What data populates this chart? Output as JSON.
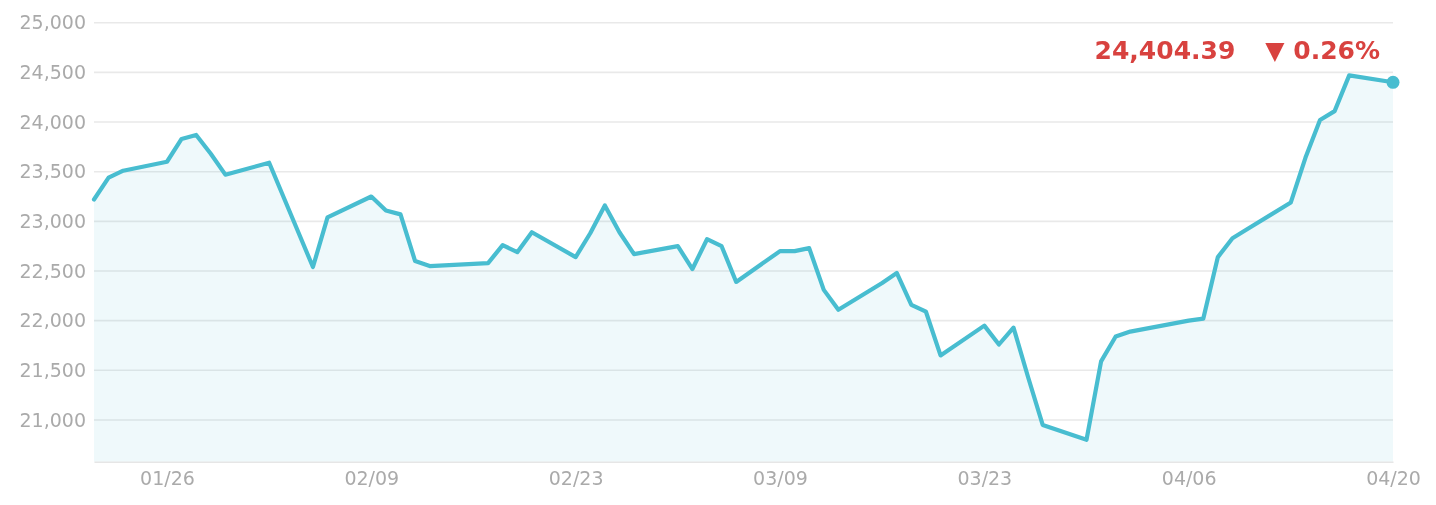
{
  "chart_data": {
    "type": "area",
    "x": [
      "--01-21",
      "--01-22",
      "--01-23",
      "--01-26",
      "--01-27",
      "--01-28",
      "--01-29",
      "--01-30",
      "--02-02",
      "--02-03",
      "--02-04",
      "--02-05",
      "--02-06",
      "--02-09",
      "--02-10",
      "--02-11",
      "--02-12",
      "--02-13",
      "--02-17",
      "--02-18",
      "--02-19",
      "--02-20",
      "--02-23",
      "--02-24",
      "--02-25",
      "--02-26",
      "--02-27",
      "--03-02",
      "--03-03",
      "--03-04",
      "--03-05",
      "--03-06",
      "--03-09",
      "--03-10",
      "--03-11",
      "--03-12",
      "--03-13",
      "--03-16",
      "--03-17",
      "--03-18",
      "--03-19",
      "--03-20",
      "--03-23",
      "--03-24",
      "--03-25",
      "--03-26",
      "--03-27",
      "--03-30",
      "--03-31",
      "--04-01",
      "--04-02",
      "--04-06",
      "--04-07",
      "--04-08",
      "--04-09",
      "--04-10",
      "--04-13",
      "--04-14",
      "--04-15",
      "--04-16",
      "--04-17",
      "--04-20"
    ],
    "series": [
      {
        "color": "#48bdd0",
        "values": [
          23220,
          23440,
          23510,
          23600,
          23830,
          23870,
          23680,
          23470,
          23590,
          23240,
          22890,
          22540,
          23040,
          23250,
          23110,
          23070,
          22600,
          22550,
          22580,
          22760,
          22690,
          22890,
          22640,
          22880,
          23160,
          22890,
          22670,
          22750,
          22520,
          22820,
          22750,
          22390,
          22700,
          22700,
          22730,
          22310,
          22110,
          22380,
          22480,
          22160,
          22090,
          21650,
          21950,
          21760,
          21930,
          21430,
          20950,
          20800,
          21590,
          21840,
          21890,
          22000,
          22020,
          22640,
          22830,
          22920,
          23190,
          23640,
          24020,
          24110,
          24470,
          24400
        ]
      },
      {
        "type": "scatter",
        "color": "#48bdd0",
        "marker": "circle",
        "x": [
          "--04-20"
        ],
        "values": [
          24400
        ]
      }
    ],
    "xlim": [
      "--01-21",
      "--04-20"
    ],
    "xticks": [
      {
        "value": "--01-26",
        "label": "01/26"
      },
      {
        "value": "--02-09",
        "label": "02/09"
      },
      {
        "value": "--02-23",
        "label": "02/23"
      },
      {
        "value": "--03-09",
        "label": "03/09"
      },
      {
        "value": "--03-23",
        "label": "03/23"
      },
      {
        "value": "--04-06",
        "label": "04/06"
      },
      {
        "value": "--04-20",
        "label": "04/20"
      }
    ],
    "ylim": [
      20580,
      25000
    ],
    "yticks": [
      {
        "value": 21000,
        "label": "21,000"
      },
      {
        "value": 21500,
        "label": "21,500"
      },
      {
        "value": 22000,
        "label": "22,000"
      },
      {
        "value": 22500,
        "label": "22,500"
      },
      {
        "value": 23000,
        "label": "23,000"
      },
      {
        "value": 23500,
        "label": "23,500"
      },
      {
        "value": 24000,
        "label": "24,000"
      },
      {
        "value": 24500,
        "label": "24,500"
      },
      {
        "value": 25000,
        "label": "25,000"
      }
    ],
    "grid": "y",
    "annotations": [
      "24,404.39",
      "▼ 0.26%"
    ]
  }
}
